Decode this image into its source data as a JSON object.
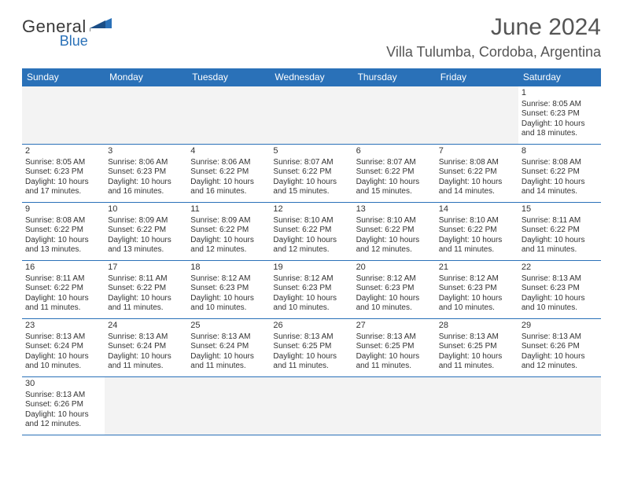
{
  "brand": {
    "name": "General",
    "sub": "Blue",
    "flag_color": "#2a71b8",
    "flag_color2": "#1b4e86"
  },
  "title": "June 2024",
  "location": "Villa Tulumba, Cordoba, Argentina",
  "colors": {
    "header_bg": "#2a71b8",
    "header_fg": "#ffffff",
    "border": "#2a71b8",
    "empty_bg": "#f3f3f3",
    "text": "#333333"
  },
  "day_headers": [
    "Sunday",
    "Monday",
    "Tuesday",
    "Wednesday",
    "Thursday",
    "Friday",
    "Saturday"
  ],
  "weeks": [
    [
      null,
      null,
      null,
      null,
      null,
      null,
      {
        "n": "1",
        "sr": "8:05 AM",
        "ss": "6:23 PM",
        "dl": "10 hours and 18 minutes."
      }
    ],
    [
      {
        "n": "2",
        "sr": "8:05 AM",
        "ss": "6:23 PM",
        "dl": "10 hours and 17 minutes."
      },
      {
        "n": "3",
        "sr": "8:06 AM",
        "ss": "6:23 PM",
        "dl": "10 hours and 16 minutes."
      },
      {
        "n": "4",
        "sr": "8:06 AM",
        "ss": "6:22 PM",
        "dl": "10 hours and 16 minutes."
      },
      {
        "n": "5",
        "sr": "8:07 AM",
        "ss": "6:22 PM",
        "dl": "10 hours and 15 minutes."
      },
      {
        "n": "6",
        "sr": "8:07 AM",
        "ss": "6:22 PM",
        "dl": "10 hours and 15 minutes."
      },
      {
        "n": "7",
        "sr": "8:08 AM",
        "ss": "6:22 PM",
        "dl": "10 hours and 14 minutes."
      },
      {
        "n": "8",
        "sr": "8:08 AM",
        "ss": "6:22 PM",
        "dl": "10 hours and 14 minutes."
      }
    ],
    [
      {
        "n": "9",
        "sr": "8:08 AM",
        "ss": "6:22 PM",
        "dl": "10 hours and 13 minutes."
      },
      {
        "n": "10",
        "sr": "8:09 AM",
        "ss": "6:22 PM",
        "dl": "10 hours and 13 minutes."
      },
      {
        "n": "11",
        "sr": "8:09 AM",
        "ss": "6:22 PM",
        "dl": "10 hours and 12 minutes."
      },
      {
        "n": "12",
        "sr": "8:10 AM",
        "ss": "6:22 PM",
        "dl": "10 hours and 12 minutes."
      },
      {
        "n": "13",
        "sr": "8:10 AM",
        "ss": "6:22 PM",
        "dl": "10 hours and 12 minutes."
      },
      {
        "n": "14",
        "sr": "8:10 AM",
        "ss": "6:22 PM",
        "dl": "10 hours and 11 minutes."
      },
      {
        "n": "15",
        "sr": "8:11 AM",
        "ss": "6:22 PM",
        "dl": "10 hours and 11 minutes."
      }
    ],
    [
      {
        "n": "16",
        "sr": "8:11 AM",
        "ss": "6:22 PM",
        "dl": "10 hours and 11 minutes."
      },
      {
        "n": "17",
        "sr": "8:11 AM",
        "ss": "6:22 PM",
        "dl": "10 hours and 11 minutes."
      },
      {
        "n": "18",
        "sr": "8:12 AM",
        "ss": "6:23 PM",
        "dl": "10 hours and 10 minutes."
      },
      {
        "n": "19",
        "sr": "8:12 AM",
        "ss": "6:23 PM",
        "dl": "10 hours and 10 minutes."
      },
      {
        "n": "20",
        "sr": "8:12 AM",
        "ss": "6:23 PM",
        "dl": "10 hours and 10 minutes."
      },
      {
        "n": "21",
        "sr": "8:12 AM",
        "ss": "6:23 PM",
        "dl": "10 hours and 10 minutes."
      },
      {
        "n": "22",
        "sr": "8:13 AM",
        "ss": "6:23 PM",
        "dl": "10 hours and 10 minutes."
      }
    ],
    [
      {
        "n": "23",
        "sr": "8:13 AM",
        "ss": "6:24 PM",
        "dl": "10 hours and 10 minutes."
      },
      {
        "n": "24",
        "sr": "8:13 AM",
        "ss": "6:24 PM",
        "dl": "10 hours and 11 minutes."
      },
      {
        "n": "25",
        "sr": "8:13 AM",
        "ss": "6:24 PM",
        "dl": "10 hours and 11 minutes."
      },
      {
        "n": "26",
        "sr": "8:13 AM",
        "ss": "6:25 PM",
        "dl": "10 hours and 11 minutes."
      },
      {
        "n": "27",
        "sr": "8:13 AM",
        "ss": "6:25 PM",
        "dl": "10 hours and 11 minutes."
      },
      {
        "n": "28",
        "sr": "8:13 AM",
        "ss": "6:25 PM",
        "dl": "10 hours and 11 minutes."
      },
      {
        "n": "29",
        "sr": "8:13 AM",
        "ss": "6:26 PM",
        "dl": "10 hours and 12 minutes."
      }
    ],
    [
      {
        "n": "30",
        "sr": "8:13 AM",
        "ss": "6:26 PM",
        "dl": "10 hours and 12 minutes."
      },
      null,
      null,
      null,
      null,
      null,
      null
    ]
  ],
  "labels": {
    "sunrise": "Sunrise:",
    "sunset": "Sunset:",
    "daylight": "Daylight:"
  }
}
